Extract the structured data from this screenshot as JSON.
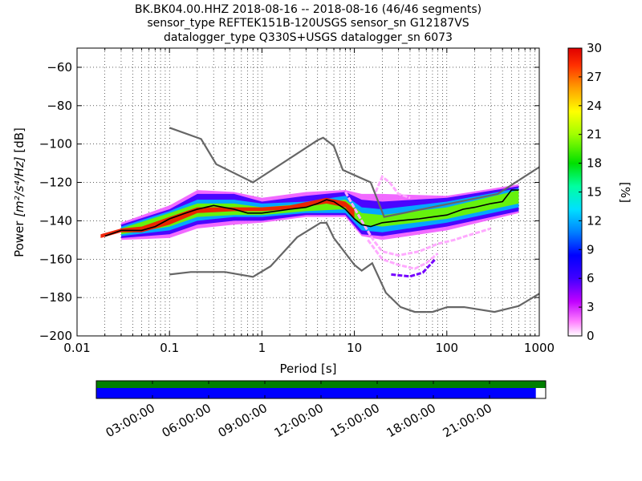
{
  "header": {
    "line1": "BK.BK04.00.HHZ   2018-08-16 -- 2018-08-16  (46/46 segments)",
    "line2": "sensor_type REFTEK151B-120USGS sensor_sn G12187VS",
    "line3": "datalogger_type Q330S+USGS datalogger_sn 6073"
  },
  "chart_data": {
    "type": "heatmap",
    "xlabel": "Period [s]",
    "ylabel_prefix": "Power ",
    "ylabel_units": "[m²/s⁴/Hz]",
    "ylabel_suffix": " [dB]",
    "x_scale": "log",
    "xlim": [
      0.01,
      1000
    ],
    "ylim": [
      -200,
      -50
    ],
    "x_ticks": [
      {
        "v": 0.01,
        "label": "0.01"
      },
      {
        "v": 0.1,
        "label": "0.1"
      },
      {
        "v": 1,
        "label": "1"
      },
      {
        "v": 10,
        "label": "10"
      },
      {
        "v": 100,
        "label": "100"
      },
      {
        "v": 1000,
        "label": "1000"
      }
    ],
    "y_ticks": [
      {
        "v": -60,
        "label": "−60"
      },
      {
        "v": -80,
        "label": "−80"
      },
      {
        "v": -100,
        "label": "−100"
      },
      {
        "v": -120,
        "label": "−120"
      },
      {
        "v": -140,
        "label": "−140"
      },
      {
        "v": -160,
        "label": "−160"
      },
      {
        "v": -180,
        "label": "−180"
      },
      {
        "v": -200,
        "label": "−200"
      }
    ],
    "grid": "dotted",
    "colorbar": {
      "label": "[%]",
      "range": [
        0,
        30
      ],
      "ticks": [
        {
          "v": 0,
          "label": "0"
        },
        {
          "v": 3,
          "label": "3"
        },
        {
          "v": 6,
          "label": "6"
        },
        {
          "v": 9,
          "label": "9"
        },
        {
          "v": 12,
          "label": "12"
        },
        {
          "v": 15,
          "label": "15"
        },
        {
          "v": 18,
          "label": "18"
        },
        {
          "v": 21,
          "label": "21"
        },
        {
          "v": 24,
          "label": "24"
        },
        {
          "v": 27,
          "label": "27"
        },
        {
          "v": 30,
          "label": "30"
        }
      ]
    },
    "new_high_noise_model": [
      [
        0.1,
        -91.5
      ],
      [
        0.22,
        -97.4
      ],
      [
        0.32,
        -110.5
      ],
      [
        0.8,
        -120
      ],
      [
        4.0,
        -98
      ],
      [
        4.6,
        -96.7
      ],
      [
        6.0,
        -101
      ],
      [
        7.5,
        -113.5
      ],
      [
        15,
        -120
      ],
      [
        21,
        -138
      ],
      [
        354.8,
        -126
      ],
      [
        1000,
        -112
      ]
    ],
    "new_low_noise_model": [
      [
        0.1,
        -168
      ],
      [
        0.17,
        -166.7
      ],
      [
        0.4,
        -166.7
      ],
      [
        0.8,
        -169.2
      ],
      [
        1.24,
        -163.7
      ],
      [
        2.4,
        -148.6
      ],
      [
        4.3,
        -141.1
      ],
      [
        5.0,
        -141.1
      ],
      [
        6.0,
        -149
      ],
      [
        10,
        -163
      ],
      [
        12,
        -166
      ],
      [
        15.6,
        -162.1
      ],
      [
        21.9,
        -177.5
      ],
      [
        31.6,
        -185
      ],
      [
        45,
        -187.5
      ],
      [
        70,
        -187.5
      ],
      [
        101,
        -185
      ],
      [
        154,
        -185
      ],
      [
        328,
        -187.5
      ],
      [
        600,
        -184.4
      ],
      [
        1000,
        -178
      ]
    ],
    "mode_curve": [
      [
        0.02,
        -148
      ],
      [
        0.03,
        -145
      ],
      [
        0.05,
        -145
      ],
      [
        0.07,
        -143
      ],
      [
        0.1,
        -139
      ],
      [
        0.15,
        -136
      ],
      [
        0.2,
        -134
      ],
      [
        0.3,
        -132
      ],
      [
        0.5,
        -134
      ],
      [
        0.7,
        -136
      ],
      [
        1,
        -136
      ],
      [
        2,
        -134
      ],
      [
        3,
        -133
      ],
      [
        4,
        -131
      ],
      [
        5,
        -129
      ],
      [
        6,
        -130
      ],
      [
        8,
        -134
      ],
      [
        10,
        -139
      ],
      [
        12,
        -142
      ],
      [
        15,
        -143
      ],
      [
        20,
        -141
      ],
      [
        30,
        -140
      ],
      [
        50,
        -139
      ],
      [
        70,
        -138
      ],
      [
        100,
        -137
      ],
      [
        150,
        -134
      ],
      [
        200,
        -133
      ],
      [
        300,
        -131
      ],
      [
        400,
        -130
      ],
      [
        500,
        -124
      ],
      [
        600,
        -124
      ]
    ],
    "density_bands": [
      {
        "pct": 29,
        "min": [
          [
            0.018,
            -149
          ],
          [
            0.03,
            -146
          ],
          [
            0.05,
            -146
          ],
          [
            0.1,
            -142
          ],
          [
            0.2,
            -136
          ],
          [
            0.5,
            -135
          ],
          [
            1,
            -135
          ],
          [
            2,
            -134
          ],
          [
            5,
            -131
          ],
          [
            8,
            -133
          ],
          [
            10,
            -139
          ]
        ],
        "max": [
          [
            0.018,
            -147
          ],
          [
            0.03,
            -144
          ],
          [
            0.05,
            -143
          ],
          [
            0.1,
            -138
          ],
          [
            0.2,
            -133
          ],
          [
            0.5,
            -133
          ],
          [
            1,
            -133
          ],
          [
            2,
            -132
          ],
          [
            5,
            -128
          ],
          [
            8,
            -130
          ],
          [
            10,
            -134
          ]
        ]
      },
      {
        "pct": 20,
        "min": [
          [
            0.03,
            -147
          ],
          [
            0.1,
            -143
          ],
          [
            0.2,
            -138
          ],
          [
            0.5,
            -137
          ],
          [
            1,
            -137
          ],
          [
            3,
            -135
          ],
          [
            8,
            -134
          ],
          [
            12,
            -142
          ],
          [
            20,
            -143
          ],
          [
            100,
            -139
          ],
          [
            600,
            -131
          ]
        ],
        "max": [
          [
            0.03,
            -144
          ],
          [
            0.1,
            -136
          ],
          [
            0.2,
            -131
          ],
          [
            0.5,
            -131
          ],
          [
            1,
            -133
          ],
          [
            3,
            -131
          ],
          [
            8,
            -129
          ],
          [
            12,
            -136
          ],
          [
            20,
            -137
          ],
          [
            100,
            -133
          ],
          [
            600,
            -124
          ]
        ]
      },
      {
        "pct": 12,
        "min": [
          [
            0.03,
            -148
          ],
          [
            0.1,
            -145
          ],
          [
            0.2,
            -140
          ],
          [
            0.5,
            -138
          ],
          [
            1,
            -138
          ],
          [
            3,
            -136
          ],
          [
            8,
            -136
          ],
          [
            12,
            -145
          ],
          [
            20,
            -146
          ],
          [
            100,
            -141
          ],
          [
            600,
            -133
          ]
        ],
        "max": [
          [
            0.03,
            -143
          ],
          [
            0.1,
            -135
          ],
          [
            0.2,
            -129
          ],
          [
            0.5,
            -129
          ],
          [
            1,
            -131
          ],
          [
            3,
            -130
          ],
          [
            8,
            -127
          ],
          [
            12,
            -133
          ],
          [
            20,
            -134
          ],
          [
            100,
            -130
          ],
          [
            600,
            -123
          ]
        ]
      },
      {
        "pct": 6,
        "min": [
          [
            0.03,
            -149
          ],
          [
            0.1,
            -147
          ],
          [
            0.2,
            -142
          ],
          [
            0.5,
            -140
          ],
          [
            1,
            -140
          ],
          [
            3,
            -137
          ],
          [
            8,
            -137
          ],
          [
            12,
            -147
          ],
          [
            20,
            -148
          ],
          [
            100,
            -143
          ],
          [
            600,
            -135
          ]
        ],
        "max": [
          [
            0.03,
            -142
          ],
          [
            0.1,
            -134
          ],
          [
            0.2,
            -126
          ],
          [
            0.5,
            -126
          ],
          [
            1,
            -130
          ],
          [
            3,
            -127
          ],
          [
            8,
            -125
          ],
          [
            12,
            -129
          ],
          [
            20,
            -130
          ],
          [
            100,
            -128
          ],
          [
            600,
            -122
          ]
        ]
      },
      {
        "pct": 2,
        "min": [
          [
            0.03,
            -150
          ],
          [
            0.1,
            -149
          ],
          [
            0.2,
            -144
          ],
          [
            0.5,
            -142
          ],
          [
            1,
            -141
          ],
          [
            3,
            -138
          ],
          [
            8,
            -138
          ],
          [
            12,
            -148
          ],
          [
            20,
            -150
          ],
          [
            100,
            -145
          ],
          [
            600,
            -136
          ]
        ],
        "max": [
          [
            0.03,
            -141
          ],
          [
            0.1,
            -132
          ],
          [
            0.2,
            -124
          ],
          [
            0.5,
            -125
          ],
          [
            1,
            -128
          ],
          [
            3,
            -125
          ],
          [
            8,
            -124
          ],
          [
            12,
            -126
          ],
          [
            20,
            -126
          ],
          [
            100,
            -127
          ],
          [
            600,
            -121
          ]
        ]
      }
    ],
    "outlier_curves": [
      {
        "pct": 1,
        "pts": [
          [
            8,
            -125
          ],
          [
            12,
            -140
          ],
          [
            16,
            -150
          ],
          [
            20,
            -156
          ],
          [
            30,
            -158
          ],
          [
            50,
            -156
          ],
          [
            80,
            -152
          ],
          [
            120,
            -150
          ],
          [
            160,
            -148
          ],
          [
            220,
            -146
          ],
          [
            300,
            -144
          ]
        ]
      },
      {
        "pct": 1,
        "pts": [
          [
            14,
            -150
          ],
          [
            20,
            -160
          ],
          [
            30,
            -163
          ],
          [
            45,
            -165
          ],
          [
            60,
            -162
          ],
          [
            80,
            -157
          ]
        ]
      },
      {
        "pct": 5,
        "pts": [
          [
            25,
            -168
          ],
          [
            40,
            -169
          ],
          [
            55,
            -167
          ],
          [
            75,
            -160
          ]
        ]
      },
      {
        "pct": 1,
        "pts": [
          [
            17,
            -125
          ],
          [
            20,
            -117
          ],
          [
            24,
            -120
          ],
          [
            30,
            -126
          ],
          [
            40,
            -128
          ]
        ]
      }
    ],
    "timeline": {
      "tick_labels": [
        "03:00:00",
        "06:00:00",
        "09:00:00",
        "12:00:00",
        "15:00:00",
        "18:00:00",
        "21:00:00"
      ],
      "data_coverage_fraction": 1.0,
      "psd_coverage_fraction": 0.978,
      "data_color": "#007f00",
      "psd_color": "#0000ff"
    }
  }
}
